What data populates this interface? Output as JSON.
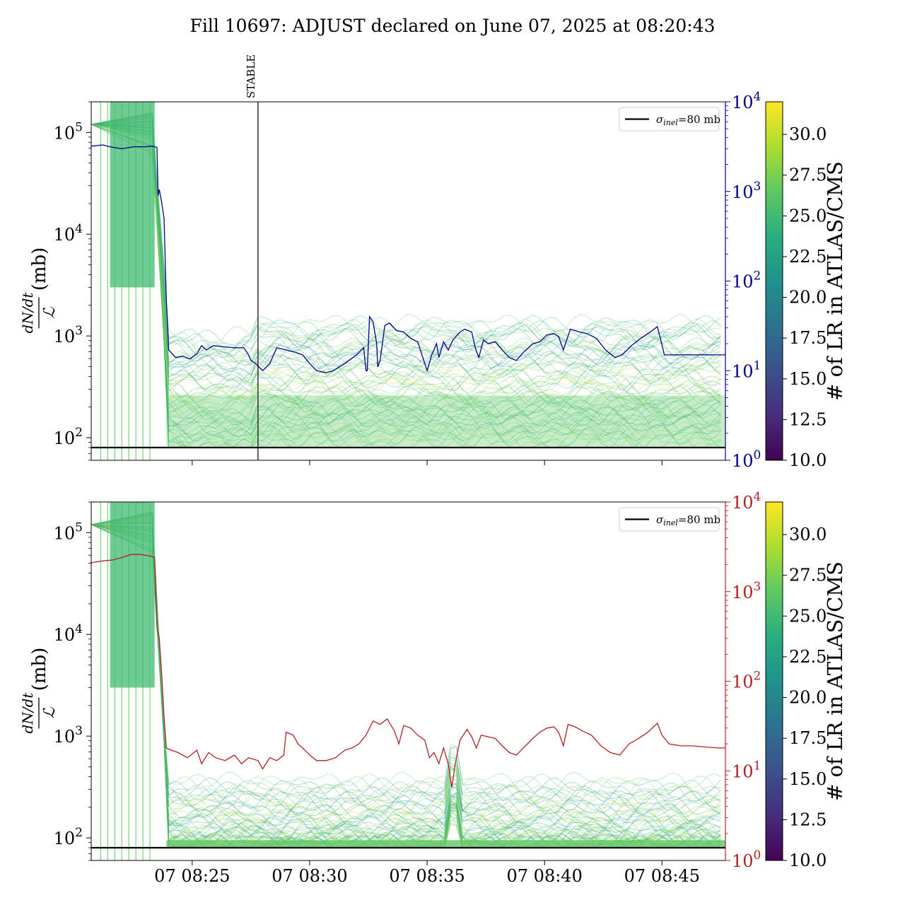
{
  "title": "Fill 10697: ADJUST declared on June 07, 2025 at 08:20:43",
  "colors": {
    "navy": "#00008b",
    "firebrick": "#b22222",
    "reference": "#000000",
    "stable_marker": "#000000"
  },
  "x_axis": {
    "tick_labels": [
      "07 08:25",
      "07 08:30",
      "07 08:35",
      "07 08:40",
      "07 08:45"
    ],
    "tick_minutes": [
      25,
      30,
      35,
      40,
      45
    ],
    "range_minutes": [
      20.7,
      47.7
    ]
  },
  "annotations": {
    "stable_label": "STABLE",
    "stable_minute": 27.8
  },
  "panels": [
    {
      "id": "top",
      "ylabel_num": "dN/dt",
      "ylabel_den": "ℒ",
      "ylabel_unit": "(mb)",
      "left_scale": "log",
      "left_ylim": [
        60,
        200000
      ],
      "left_ticks": [
        {
          "base": "10",
          "exp": "2"
        },
        {
          "base": "10",
          "exp": "3"
        },
        {
          "base": "10",
          "exp": "4"
        },
        {
          "base": "10",
          "exp": "5"
        }
      ],
      "right_scale": "log",
      "right_ylim": [
        1,
        10000
      ],
      "right_ticks": [
        {
          "base": "10",
          "exp": "0"
        },
        {
          "base": "10",
          "exp": "1"
        },
        {
          "base": "10",
          "exp": "2"
        },
        {
          "base": "10",
          "exp": "3"
        },
        {
          "base": "10",
          "exp": "4"
        }
      ],
      "right_color": "#00008b",
      "show_stable": true,
      "show_x_labels": false,
      "legend": {
        "symbol": "σ",
        "subscript": "inel",
        "text": "=80 mb",
        "placement": "upper right"
      },
      "reference_value": 80,
      "colorbar": {
        "label": "# of LR in ATLAS/CMS",
        "range": [
          10.0,
          32.0
        ],
        "tick_labels": [
          "10.0",
          "12.5",
          "15.0",
          "17.5",
          "20.0",
          "22.5",
          "25.0",
          "27.5",
          "30.0"
        ],
        "colormap": "viridis"
      },
      "right_series": [
        [
          20.7,
          3200
        ],
        [
          21.2,
          3300
        ],
        [
          21.5,
          3150
        ],
        [
          22.0,
          3000
        ],
        [
          22.5,
          3150
        ],
        [
          23.0,
          3150
        ],
        [
          23.3,
          3200
        ],
        [
          23.5,
          3100
        ],
        [
          23.55,
          900
        ],
        [
          23.6,
          1050
        ],
        [
          23.7,
          750
        ],
        [
          23.8,
          500
        ],
        [
          23.9,
          60
        ],
        [
          24.0,
          17
        ],
        [
          24.3,
          14
        ],
        [
          24.6,
          14.5
        ],
        [
          24.9,
          13.5
        ],
        [
          25.2,
          15.5
        ],
        [
          25.4,
          19
        ],
        [
          25.6,
          17
        ],
        [
          25.9,
          19
        ],
        [
          26.3,
          18.5
        ],
        [
          26.8,
          18
        ],
        [
          27.2,
          18
        ],
        [
          27.4,
          15
        ],
        [
          27.5,
          13
        ],
        [
          27.7,
          12
        ],
        [
          28.0,
          10
        ],
        [
          28.3,
          12
        ],
        [
          28.6,
          18
        ],
        [
          29.0,
          17
        ],
        [
          29.4,
          16
        ],
        [
          29.7,
          15
        ],
        [
          30.0,
          12
        ],
        [
          30.3,
          10
        ],
        [
          30.7,
          9.5
        ],
        [
          31.0,
          10
        ],
        [
          31.5,
          12
        ],
        [
          32.0,
          15
        ],
        [
          32.2,
          17
        ],
        [
          32.3,
          18
        ],
        [
          32.4,
          10
        ],
        [
          32.45,
          10
        ],
        [
          32.55,
          40
        ],
        [
          32.7,
          35
        ],
        [
          32.85,
          20
        ],
        [
          32.9,
          11
        ],
        [
          33.0,
          13
        ],
        [
          33.2,
          32
        ],
        [
          33.4,
          34
        ],
        [
          33.7,
          28
        ],
        [
          34.0,
          27
        ],
        [
          34.3,
          23
        ],
        [
          34.6,
          21
        ],
        [
          34.9,
          12
        ],
        [
          35.0,
          10
        ],
        [
          35.2,
          15
        ],
        [
          35.4,
          20
        ],
        [
          35.5,
          14
        ],
        [
          35.7,
          21
        ],
        [
          35.9,
          17
        ],
        [
          36.1,
          22
        ],
        [
          36.4,
          27
        ],
        [
          36.6,
          29
        ],
        [
          36.9,
          27
        ],
        [
          37.05,
          18
        ],
        [
          37.2,
          14
        ],
        [
          37.4,
          22
        ],
        [
          37.6,
          20
        ],
        [
          37.9,
          21
        ],
        [
          38.2,
          17
        ],
        [
          38.5,
          14
        ],
        [
          38.8,
          13
        ],
        [
          39.1,
          16
        ],
        [
          39.5,
          20
        ],
        [
          39.8,
          21
        ],
        [
          40.1,
          25
        ],
        [
          40.4,
          26
        ],
        [
          40.6,
          24
        ],
        [
          40.8,
          17
        ],
        [
          41.1,
          29
        ],
        [
          41.5,
          27
        ],
        [
          41.8,
          26
        ],
        [
          42.2,
          23
        ],
        [
          42.6,
          17
        ],
        [
          43.0,
          14
        ],
        [
          43.3,
          15
        ],
        [
          43.7,
          19
        ],
        [
          44.1,
          23
        ],
        [
          44.5,
          27
        ],
        [
          44.8,
          31
        ],
        [
          44.95,
          22
        ],
        [
          45.1,
          15
        ],
        [
          45.5,
          15
        ],
        [
          46.0,
          15
        ],
        [
          46.5,
          15
        ],
        [
          47.0,
          15
        ],
        [
          47.7,
          15
        ]
      ]
    },
    {
      "id": "bottom",
      "ylabel_num": "dN/dt",
      "ylabel_den": "ℒ",
      "ylabel_unit": "(mb)",
      "left_scale": "log",
      "left_ylim": [
        60,
        200000
      ],
      "left_ticks": [
        {
          "base": "10",
          "exp": "2"
        },
        {
          "base": "10",
          "exp": "3"
        },
        {
          "base": "10",
          "exp": "4"
        },
        {
          "base": "10",
          "exp": "5"
        }
      ],
      "right_scale": "log",
      "right_ylim": [
        1,
        10000
      ],
      "right_ticks": [
        {
          "base": "10",
          "exp": "0"
        },
        {
          "base": "10",
          "exp": "1"
        },
        {
          "base": "10",
          "exp": "2"
        },
        {
          "base": "10",
          "exp": "3"
        },
        {
          "base": "10",
          "exp": "4"
        }
      ],
      "right_color": "#b22222",
      "show_stable": false,
      "show_x_labels": true,
      "legend": {
        "symbol": "σ",
        "subscript": "inel",
        "text": "=80 mb",
        "placement": "upper right"
      },
      "reference_value": 80,
      "colorbar": {
        "label": "# of LR in ATLAS/CMS",
        "range": [
          10.0,
          32.0
        ],
        "tick_labels": [
          "10.0",
          "12.5",
          "15.0",
          "17.5",
          "20.0",
          "22.5",
          "25.0",
          "27.5",
          "30.0"
        ],
        "colormap": "viridis"
      },
      "right_series": [
        [
          20.7,
          2100
        ],
        [
          21.2,
          2200
        ],
        [
          21.6,
          2250
        ],
        [
          22.0,
          2400
        ],
        [
          22.4,
          2600
        ],
        [
          22.8,
          2600
        ],
        [
          23.2,
          2500
        ],
        [
          23.4,
          2400
        ],
        [
          23.5,
          400
        ],
        [
          23.6,
          300
        ],
        [
          23.7,
          120
        ],
        [
          23.8,
          40
        ],
        [
          23.9,
          18
        ],
        [
          24.1,
          17
        ],
        [
          24.4,
          16
        ],
        [
          24.8,
          14
        ],
        [
          25.2,
          17
        ],
        [
          25.4,
          12
        ],
        [
          25.7,
          16
        ],
        [
          26.0,
          14
        ],
        [
          26.4,
          13
        ],
        [
          26.8,
          15
        ],
        [
          27.1,
          12
        ],
        [
          27.4,
          14
        ],
        [
          27.8,
          13
        ],
        [
          28.0,
          10.5
        ],
        [
          28.3,
          14
        ],
        [
          28.6,
          13
        ],
        [
          28.9,
          15
        ],
        [
          29.0,
          27
        ],
        [
          29.3,
          25
        ],
        [
          29.5,
          20
        ],
        [
          29.7,
          18
        ],
        [
          30.0,
          15
        ],
        [
          30.3,
          13
        ],
        [
          30.7,
          13
        ],
        [
          31.1,
          14
        ],
        [
          31.5,
          17
        ],
        [
          31.8,
          18
        ],
        [
          32.1,
          20
        ],
        [
          32.4,
          25
        ],
        [
          32.7,
          36
        ],
        [
          33.0,
          33
        ],
        [
          33.3,
          38
        ],
        [
          33.6,
          28
        ],
        [
          33.8,
          20
        ],
        [
          34.0,
          32
        ],
        [
          34.3,
          30
        ],
        [
          34.6,
          25
        ],
        [
          34.9,
          22
        ],
        [
          35.1,
          14
        ],
        [
          35.3,
          16
        ],
        [
          35.5,
          12
        ],
        [
          35.7,
          18
        ],
        [
          35.9,
          12
        ],
        [
          36.05,
          6.5
        ],
        [
          36.2,
          12
        ],
        [
          36.4,
          22
        ],
        [
          36.7,
          29
        ],
        [
          36.9,
          24
        ],
        [
          37.1,
          18
        ],
        [
          37.3,
          25
        ],
        [
          37.6,
          24
        ],
        [
          37.9,
          23
        ],
        [
          38.2,
          19
        ],
        [
          38.5,
          16
        ],
        [
          38.8,
          15
        ],
        [
          39.1,
          18
        ],
        [
          39.5,
          23
        ],
        [
          39.8,
          27
        ],
        [
          40.1,
          30
        ],
        [
          40.4,
          31
        ],
        [
          40.6,
          27
        ],
        [
          40.8,
          19
        ],
        [
          41.0,
          33
        ],
        [
          41.3,
          31
        ],
        [
          41.6,
          28
        ],
        [
          42.0,
          25
        ],
        [
          42.4,
          19
        ],
        [
          42.8,
          16
        ],
        [
          43.2,
          15
        ],
        [
          43.6,
          20
        ],
        [
          44.0,
          23
        ],
        [
          44.4,
          27
        ],
        [
          44.8,
          34
        ],
        [
          45.0,
          25
        ],
        [
          45.3,
          20
        ],
        [
          45.8,
          19
        ],
        [
          46.3,
          19
        ],
        [
          46.8,
          18.5
        ],
        [
          47.4,
          18
        ],
        [
          47.7,
          18
        ]
      ]
    }
  ]
}
